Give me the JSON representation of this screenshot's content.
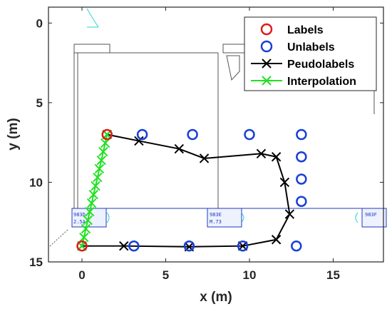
{
  "chart_data": {
    "type": "scatter",
    "xlabel": "x (m)",
    "ylabel": "y (m)",
    "xlim": [
      -2,
      18
    ],
    "ylim": [
      15,
      -1
    ],
    "y_reversed": true,
    "xticks": [
      0,
      5,
      10,
      15
    ],
    "yticks": [
      0,
      5,
      10,
      15
    ],
    "grid": false,
    "legend_position": "top-right",
    "series": [
      {
        "name": "Labels",
        "marker": "circle",
        "color": "#e01a1a",
        "x": [
          1.5,
          0
        ],
        "y": [
          7,
          14
        ]
      },
      {
        "name": "Unlabels",
        "marker": "circle",
        "color": "#1a3fd6",
        "x": [
          3.6,
          6.6,
          10.0,
          13.1,
          13.1,
          13.1,
          13.1,
          3.1,
          6.4,
          9.6,
          12.8
        ],
        "y": [
          7.0,
          7.0,
          7.0,
          7.0,
          8.4,
          9.8,
          11.2,
          14.0,
          14.0,
          14.0,
          14.0
        ]
      },
      {
        "name": "Peudolabels",
        "marker": "x-line",
        "color": "#000000",
        "x": [
          1.5,
          3.4,
          5.8,
          7.3,
          10.7,
          11.6,
          12.1,
          12.4,
          11.6,
          9.6,
          6.4,
          2.5,
          0
        ],
        "y": [
          7.0,
          7.4,
          7.9,
          8.5,
          8.2,
          8.4,
          10.0,
          12.0,
          13.6,
          14.0,
          14.05,
          14.0,
          14.0
        ]
      },
      {
        "name": "Interpolation",
        "marker": "x-line",
        "color": "#22e022",
        "x": [
          1.5,
          1.39,
          1.27,
          1.16,
          1.04,
          0.93,
          0.81,
          0.69,
          0.58,
          0.46,
          0.35,
          0.23,
          0.12,
          0.0
        ],
        "y": [
          7.0,
          7.54,
          8.08,
          8.62,
          9.15,
          9.69,
          10.23,
          10.77,
          11.31,
          11.85,
          12.38,
          12.92,
          13.46,
          14.0
        ]
      }
    ]
  },
  "floorplan": {
    "room_labels": [
      {
        "line1": "983D",
        "line2": "2.5A"
      },
      {
        "line1": "983E",
        "line2": "M.73"
      },
      {
        "line1": "983F",
        "line2": ""
      }
    ]
  }
}
